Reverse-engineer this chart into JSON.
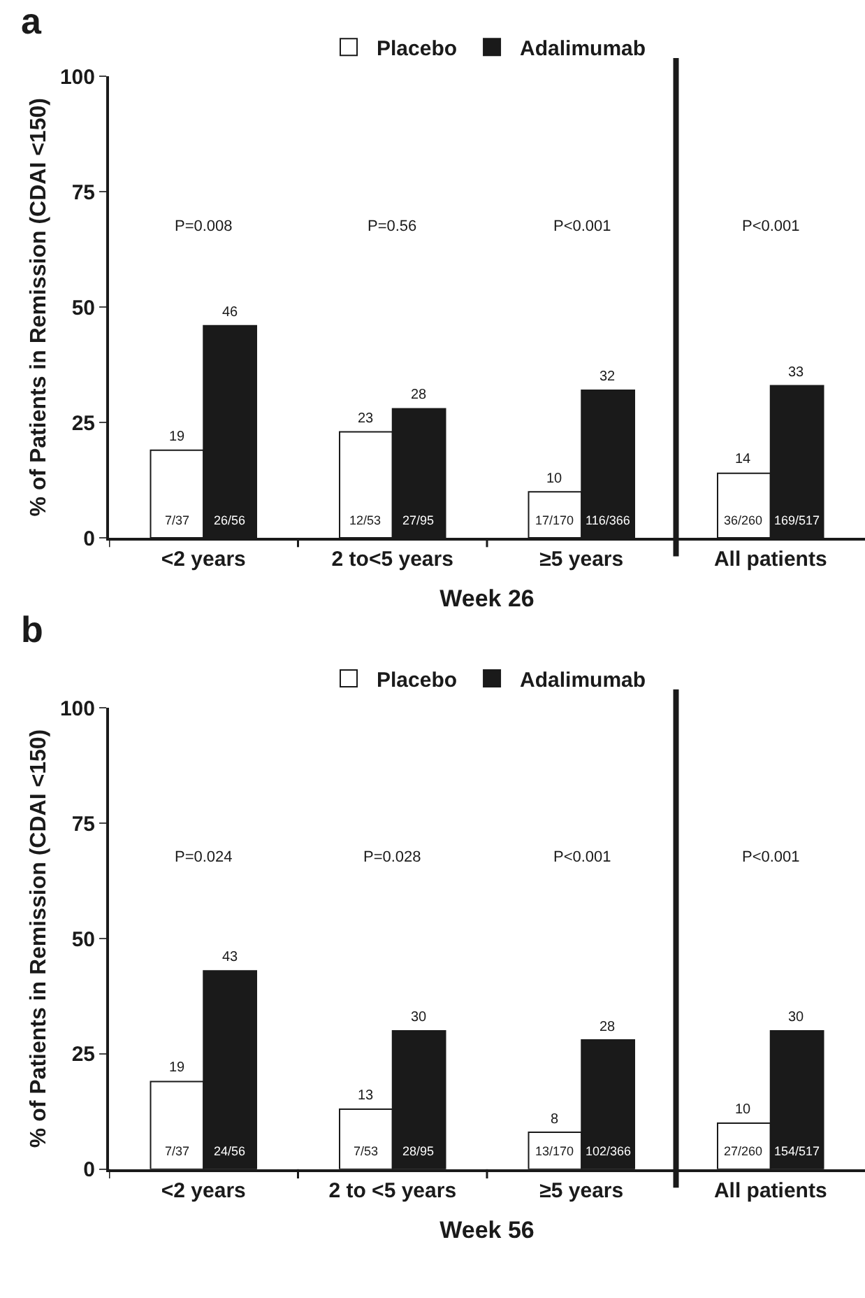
{
  "chart_data": [
    {
      "type": "bar",
      "title": "a",
      "categories": [
        "<2 years",
        "2 to<5 years",
        "≥5 years",
        "All patients"
      ],
      "xlabel": "Week 26",
      "ylabel": "% of Patients in Remission (CDAI <150)",
      "ylim": [
        0,
        100
      ],
      "yticks": [
        0,
        25,
        50,
        75,
        100
      ],
      "grid": false,
      "legend": "top",
      "data_labels": true,
      "series": [
        {
          "name": "Placebo",
          "color": "#ffffff",
          "values": [
            19,
            23,
            10,
            14
          ]
        },
        {
          "name": "Adalimumab",
          "color": "#1a1a1a",
          "values": [
            46,
            28,
            32,
            33
          ]
        }
      ],
      "annotations": [
        "P=0.008",
        "P=0.56",
        "P<0.001",
        "P<0.001",
        "7/37",
        "12/53",
        "17/170",
        "36/260",
        "26/56",
        "27/95",
        "116/366",
        "169/517"
      ]
    },
    {
      "type": "bar",
      "title": "b",
      "categories": [
        "<2 years",
        "2 to <5 years",
        "≥5 years",
        "All patients"
      ],
      "xlabel": "Week 56",
      "ylabel": "% of Patients in Remission (CDAI <150)",
      "ylim": [
        0,
        100
      ],
      "yticks": [
        0,
        25,
        50,
        75,
        100
      ],
      "grid": false,
      "legend": "top",
      "data_labels": true,
      "series": [
        {
          "name": "Placebo",
          "color": "#ffffff",
          "values": [
            19,
            13,
            8,
            10
          ]
        },
        {
          "name": "Adalimumab",
          "color": "#1a1a1a",
          "values": [
            43,
            30,
            28,
            30
          ]
        }
      ],
      "annotations": [
        "P=0.024",
        "P=0.028",
        "P<0.001",
        "P<0.001",
        "7/37",
        "7/53",
        "13/170",
        "27/260",
        "24/56",
        "28/95",
        "102/366",
        "154/517"
      ]
    }
  ]
}
